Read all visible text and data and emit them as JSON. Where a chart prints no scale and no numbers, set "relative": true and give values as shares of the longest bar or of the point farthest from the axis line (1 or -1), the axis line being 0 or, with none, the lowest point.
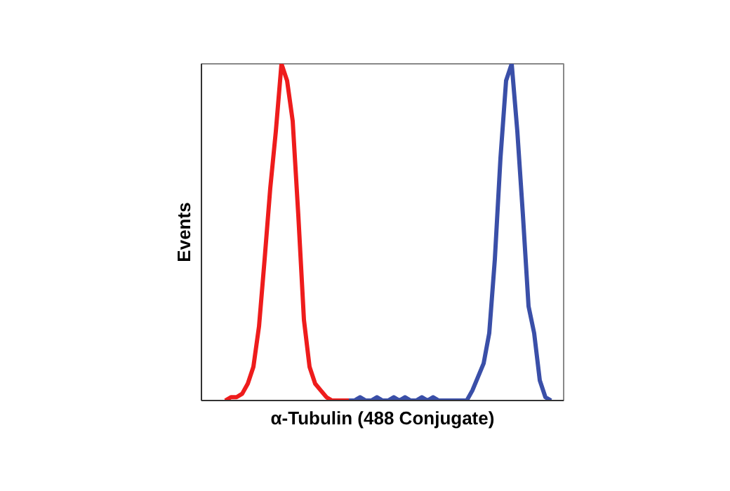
{
  "chart_data": {
    "type": "line",
    "relative": true,
    "xlabel": "α-Tubulin (488 Conjugate)",
    "ylabel": "Events",
    "categories": [
      null,
      null,
      null,
      null,
      null,
      null,
      null,
      null,
      null,
      null,
      null,
      null,
      null,
      null,
      null,
      null,
      null,
      null,
      null,
      null,
      null,
      null,
      null,
      null,
      null,
      null,
      null,
      null,
      null,
      null,
      null,
      null,
      null,
      null,
      null,
      null,
      null,
      null,
      null,
      null,
      null,
      null,
      null,
      null,
      null,
      null,
      null,
      null,
      null,
      null,
      null,
      null,
      null,
      null,
      null,
      null,
      null,
      null,
      null
    ],
    "series": [
      {
        "color": "#ee1c1c",
        "values": [
          0,
          0.01,
          0.01,
          0.02,
          0.05,
          0.1,
          0.22,
          0.42,
          0.63,
          0.8,
          1.0,
          0.95,
          0.83,
          0.55,
          0.24,
          0.1,
          0.05,
          0.03,
          0.01,
          0,
          0,
          0,
          0,
          null,
          null,
          null,
          null,
          null,
          null,
          null,
          null,
          null,
          null,
          null,
          null,
          null,
          null,
          null,
          null,
          null,
          null,
          null,
          null,
          null,
          null,
          null,
          null,
          null,
          null,
          null,
          null,
          null,
          null,
          null,
          null,
          null,
          null,
          null,
          null
        ]
      },
      {
        "color": "#3a4fa8",
        "values": [
          null,
          null,
          null,
          null,
          null,
          null,
          null,
          null,
          null,
          null,
          null,
          null,
          null,
          null,
          null,
          null,
          null,
          null,
          null,
          null,
          null,
          null,
          0,
          0,
          0.01,
          0,
          0,
          0.01,
          0,
          0,
          0.01,
          0,
          0.01,
          0,
          0,
          0.01,
          0,
          0.01,
          0,
          0,
          0,
          0,
          0,
          0,
          0.03,
          0.07,
          0.11,
          0.2,
          0.42,
          0.72,
          0.95,
          1.0,
          0.8,
          0.55,
          0.28,
          0.2,
          0.06,
          0.01,
          0
        ]
      }
    ]
  }
}
